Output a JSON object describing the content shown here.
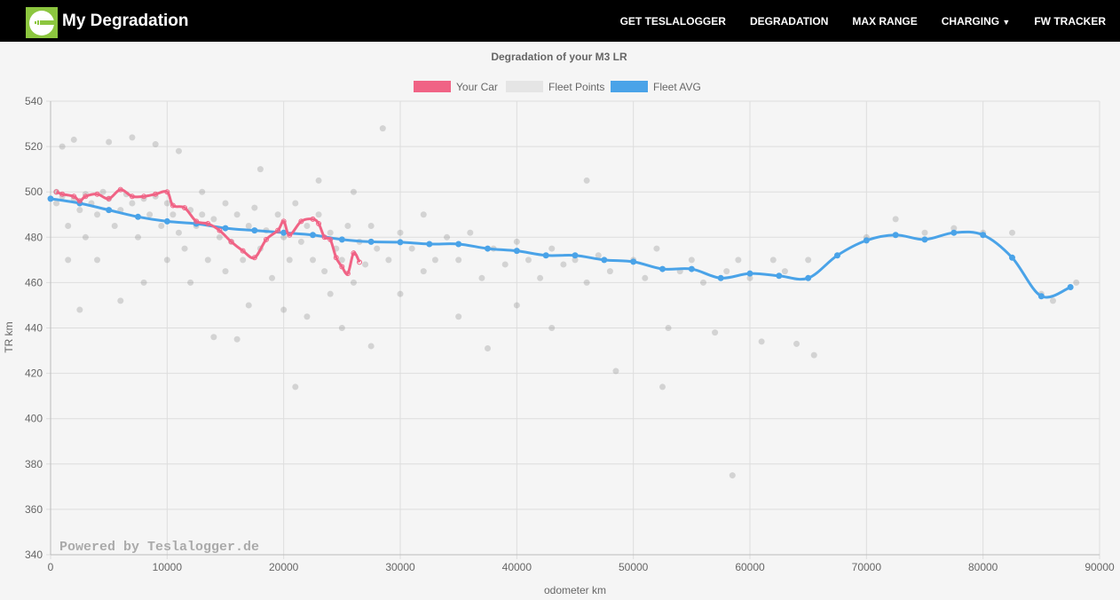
{
  "nav": {
    "brand": "My Degradation",
    "items": [
      "GET TESLALOGGER",
      "DEGRADATION",
      "MAX RANGE",
      "CHARGING",
      "FW TRACKER"
    ],
    "logo_color": "#8cc63f"
  },
  "watermark": "Powered by Teslalogger.de",
  "chart_data": {
    "type": "line",
    "title": "Degradation of your M3 LR",
    "xlabel": "odometer km",
    "ylabel": "TR km",
    "xlim": [
      0,
      90000
    ],
    "ylim": [
      340,
      540
    ],
    "xticks": [
      0,
      10000,
      20000,
      30000,
      40000,
      50000,
      60000,
      70000,
      80000,
      90000
    ],
    "yticks": [
      340,
      360,
      380,
      400,
      420,
      440,
      460,
      480,
      500,
      520,
      540
    ],
    "grid": true,
    "legend": "top",
    "series": [
      {
        "name": "Your Car",
        "color": "#f06385",
        "x": [
          500,
          1000,
          2000,
          2500,
          3000,
          4000,
          5000,
          6000,
          7000,
          8000,
          9000,
          10000,
          10500,
          11500,
          12500,
          13500,
          14500,
          15500,
          16500,
          17500,
          18500,
          19500,
          20000,
          20500,
          21500,
          22500,
          23000,
          23500,
          24000,
          24500,
          25000,
          25500,
          26000,
          26500
        ],
        "y": [
          500,
          499,
          498,
          496,
          498,
          499,
          497,
          501,
          498,
          498,
          499,
          500,
          494,
          493,
          487,
          486,
          483,
          478,
          474,
          471,
          479,
          483,
          487,
          481,
          487,
          488,
          486,
          480,
          479,
          471,
          467,
          464,
          473,
          469
        ]
      },
      {
        "name": "Fleet Points",
        "color": "#e5e5e5",
        "type": "scatter",
        "points": [
          [
            500,
            500
          ],
          [
            500,
            495
          ],
          [
            1000,
            498
          ],
          [
            1000,
            520
          ],
          [
            1500,
            485
          ],
          [
            1500,
            470
          ],
          [
            2000,
            497
          ],
          [
            2000,
            523
          ],
          [
            2500,
            492
          ],
          [
            2500,
            448
          ],
          [
            3000,
            499
          ],
          [
            3000,
            480
          ],
          [
            3500,
            495
          ],
          [
            4000,
            490
          ],
          [
            4000,
            470
          ],
          [
            4500,
            500
          ],
          [
            5000,
            497
          ],
          [
            5000,
            522
          ],
          [
            5500,
            485
          ],
          [
            6000,
            492
          ],
          [
            6000,
            452
          ],
          [
            6500,
            499
          ],
          [
            7000,
            495
          ],
          [
            7000,
            524
          ],
          [
            7500,
            480
          ],
          [
            8000,
            497
          ],
          [
            8000,
            460
          ],
          [
            8500,
            490
          ],
          [
            9000,
            498
          ],
          [
            9000,
            521
          ],
          [
            9500,
            485
          ],
          [
            10000,
            495
          ],
          [
            10000,
            470
          ],
          [
            10500,
            490
          ],
          [
            11000,
            482
          ],
          [
            11000,
            518
          ],
          [
            11500,
            475
          ],
          [
            12000,
            492
          ],
          [
            12000,
            460
          ],
          [
            12500,
            485
          ],
          [
            13000,
            490
          ],
          [
            13000,
            500
          ],
          [
            13500,
            470
          ],
          [
            14000,
            488
          ],
          [
            14000,
            436
          ],
          [
            14500,
            480
          ],
          [
            15000,
            495
          ],
          [
            15000,
            465
          ],
          [
            15500,
            478
          ],
          [
            16000,
            490
          ],
          [
            16000,
            435
          ],
          [
            16500,
            470
          ],
          [
            17000,
            485
          ],
          [
            17000,
            450
          ],
          [
            17500,
            493
          ],
          [
            18000,
            475
          ],
          [
            18000,
            510
          ],
          [
            18500,
            483
          ],
          [
            19000,
            462
          ],
          [
            19500,
            490
          ],
          [
            20000,
            480
          ],
          [
            20000,
            448
          ],
          [
            20500,
            470
          ],
          [
            21000,
            495
          ],
          [
            21000,
            414
          ],
          [
            21500,
            478
          ],
          [
            22000,
            485
          ],
          [
            22000,
            445
          ],
          [
            22500,
            470
          ],
          [
            23000,
            490
          ],
          [
            23000,
            505
          ],
          [
            23500,
            465
          ],
          [
            24000,
            482
          ],
          [
            24000,
            455
          ],
          [
            24500,
            475
          ],
          [
            25000,
            470
          ],
          [
            25000,
            440
          ],
          [
            25500,
            485
          ],
          [
            26000,
            460
          ],
          [
            26000,
            500
          ],
          [
            26500,
            478
          ],
          [
            27000,
            468
          ],
          [
            27500,
            485
          ],
          [
            27500,
            432
          ],
          [
            28000,
            475
          ],
          [
            28500,
            528
          ],
          [
            29000,
            470
          ],
          [
            30000,
            482
          ],
          [
            30000,
            455
          ],
          [
            31000,
            475
          ],
          [
            32000,
            490
          ],
          [
            32000,
            465
          ],
          [
            33000,
            470
          ],
          [
            34000,
            480
          ],
          [
            35000,
            470
          ],
          [
            35000,
            445
          ],
          [
            36000,
            482
          ],
          [
            37000,
            462
          ],
          [
            37500,
            431
          ],
          [
            38000,
            475
          ],
          [
            39000,
            468
          ],
          [
            40000,
            478
          ],
          [
            40000,
            450
          ],
          [
            41000,
            470
          ],
          [
            42000,
            462
          ],
          [
            43000,
            475
          ],
          [
            43000,
            440
          ],
          [
            44000,
            468
          ],
          [
            45000,
            470
          ],
          [
            46000,
            460
          ],
          [
            46000,
            505
          ],
          [
            47000,
            472
          ],
          [
            48000,
            465
          ],
          [
            48500,
            421
          ],
          [
            50000,
            470
          ],
          [
            51000,
            462
          ],
          [
            52000,
            475
          ],
          [
            52500,
            414
          ],
          [
            53000,
            440
          ],
          [
            54000,
            465
          ],
          [
            55000,
            470
          ],
          [
            56000,
            460
          ],
          [
            57000,
            438
          ],
          [
            58000,
            465
          ],
          [
            58500,
            375
          ],
          [
            59000,
            470
          ],
          [
            60000,
            462
          ],
          [
            61000,
            434
          ],
          [
            62000,
            470
          ],
          [
            63000,
            465
          ],
          [
            64000,
            433
          ],
          [
            65000,
            470
          ],
          [
            65500,
            428
          ],
          [
            70000,
            480
          ],
          [
            72500,
            488
          ],
          [
            75000,
            482
          ],
          [
            77500,
            484
          ],
          [
            80000,
            482
          ],
          [
            82500,
            482
          ],
          [
            85000,
            455
          ],
          [
            86000,
            452
          ],
          [
            88000,
            460
          ]
        ]
      },
      {
        "name": "Fleet AVG",
        "color": "#4aa3e8",
        "x": [
          0,
          2500,
          5000,
          7500,
          10000,
          12500,
          15000,
          17500,
          20000,
          22500,
          25000,
          27500,
          30000,
          32500,
          35000,
          37500,
          40000,
          42500,
          45000,
          47500,
          50000,
          52500,
          55000,
          57500,
          60000,
          62500,
          65000,
          67500,
          70000,
          72500,
          75000,
          77500,
          80000,
          82500,
          85000,
          87500
        ],
        "y": [
          497,
          495,
          492,
          489,
          487,
          486,
          484,
          483,
          482,
          481,
          479,
          478,
          477.8,
          477,
          477,
          475,
          474,
          472,
          472,
          470,
          469.2,
          466,
          466,
          462,
          464,
          463,
          462,
          472,
          478.6,
          481,
          479,
          482,
          481,
          471,
          454,
          458
        ]
      }
    ]
  }
}
